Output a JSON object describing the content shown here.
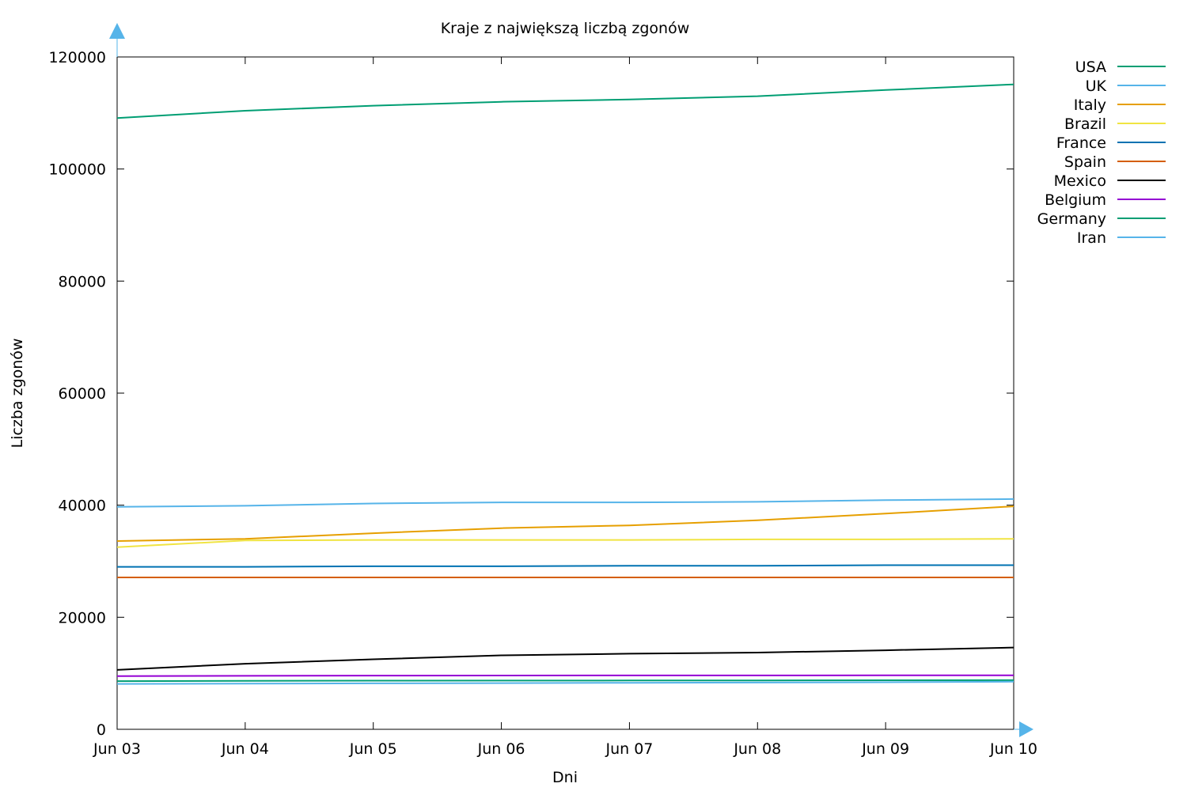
{
  "chart_data": {
    "type": "line",
    "title": "Kraje z największą liczbą zgonów",
    "xlabel": "Dni",
    "ylabel": "Liczba zgonów",
    "x": [
      "Jun 03",
      "Jun 04",
      "Jun 05",
      "Jun 06",
      "Jun 07",
      "Jun 08",
      "Jun 09",
      "Jun 10"
    ],
    "x_tick_labels": [
      "Jun 03",
      "Jun 04",
      "Jun 05",
      "Jun 06",
      "Jun 07",
      "Jun 08",
      "Jun 09",
      "Jun 10"
    ],
    "ylim": [
      0,
      120000
    ],
    "y_ticks": [
      0,
      20000,
      40000,
      60000,
      80000,
      100000,
      120000
    ],
    "y_tick_labels": [
      "0",
      "20000",
      "40000",
      "60000",
      "80000",
      "100000",
      "120000"
    ],
    "grid": false,
    "legend_position": "outside-top-right",
    "axis_arrow_color": "#56b4e9",
    "series": [
      {
        "name": "USA",
        "color": "#009e73",
        "values": [
          109100,
          110400,
          111300,
          112000,
          112400,
          113000,
          114100,
          115100
        ]
      },
      {
        "name": "UK",
        "color": "#56b4e9",
        "values": [
          39700,
          39900,
          40300,
          40500,
          40500,
          40600,
          40900,
          41100
        ]
      },
      {
        "name": "Italy",
        "color": "#e69f00",
        "values": [
          33600,
          34000,
          35000,
          35900,
          36400,
          37300,
          38500,
          39800
        ]
      },
      {
        "name": "Brazil",
        "color": "#f0e442",
        "values": [
          32500,
          33700,
          33800,
          33800,
          33800,
          33900,
          33900,
          34000
        ]
      },
      {
        "name": "France",
        "color": "#0072b2",
        "values": [
          29000,
          29000,
          29100,
          29100,
          29200,
          29200,
          29300,
          29300
        ]
      },
      {
        "name": "Spain",
        "color": "#d55e00",
        "values": [
          27100,
          27100,
          27100,
          27100,
          27100,
          27100,
          27100,
          27100
        ]
      },
      {
        "name": "Mexico",
        "color": "#000000",
        "values": [
          10600,
          11700,
          12500,
          13200,
          13500,
          13700,
          14100,
          14600
        ]
      },
      {
        "name": "Belgium",
        "color": "#9400d3",
        "values": [
          9500,
          9550,
          9580,
          9600,
          9610,
          9620,
          9630,
          9640
        ]
      },
      {
        "name": "Germany",
        "color": "#009e73",
        "values": [
          8600,
          8650,
          8680,
          8700,
          8710,
          8730,
          8750,
          8770
        ]
      },
      {
        "name": "Iran",
        "color": "#56b4e9",
        "values": [
          8100,
          8150,
          8200,
          8250,
          8300,
          8350,
          8400,
          8500
        ]
      }
    ]
  }
}
